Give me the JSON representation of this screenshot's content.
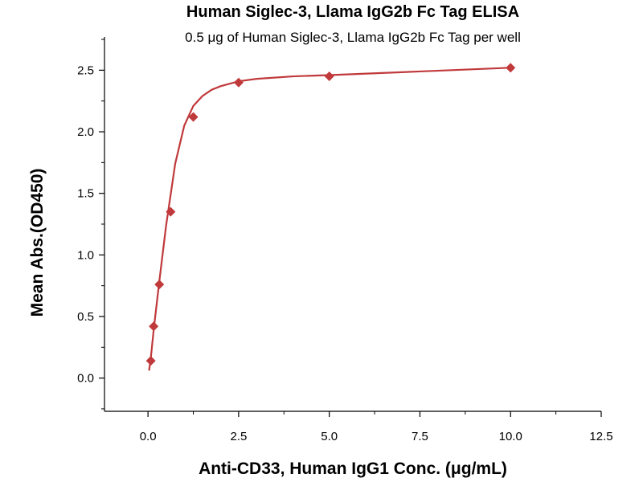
{
  "chart_data": {
    "type": "scatter",
    "title": "Human Siglec-3, Llama IgG2b Fc Tag ELISA",
    "subtitle": "0.5 μg of Human Siglec-3, Llama IgG2b Fc Tag per well",
    "xlabel": "Anti-CD33, Human IgG1 Conc. (μg/mL)",
    "ylabel": "Mean Abs.(OD450)",
    "xlim": [
      -1.2,
      12.5
    ],
    "ylim": [
      -0.27,
      2.77
    ],
    "xticks": [
      0.0,
      2.5,
      5.0,
      7.5,
      10.0,
      12.5
    ],
    "xtick_labels": [
      "0.0",
      "2.5",
      "5.0",
      "7.5",
      "10.0",
      "12.5"
    ],
    "yticks": [
      0.0,
      0.5,
      1.0,
      1.5,
      2.0,
      2.5
    ],
    "ytick_labels": [
      "0.0",
      "0.5",
      "1.0",
      "1.5",
      "2.0",
      "2.5"
    ],
    "grid": false,
    "color": "#c0393b",
    "marker": "diamond",
    "series": [
      {
        "x": [
          0.078,
          0.156,
          0.3125,
          0.625,
          1.25,
          2.5,
          5.0,
          10.0
        ],
        "y": [
          0.14,
          0.42,
          0.76,
          1.35,
          2.12,
          2.4,
          2.45,
          2.52
        ],
        "fit_curve": {
          "x": [
            0.03,
            0.08,
            0.16,
            0.31,
            0.5,
            0.75,
            1.0,
            1.25,
            1.5,
            1.75,
            2.0,
            2.5,
            3.0,
            4.0,
            5.0,
            7.5,
            10.0
          ],
          "y": [
            0.06,
            0.17,
            0.4,
            0.78,
            1.24,
            1.74,
            2.05,
            2.21,
            2.29,
            2.34,
            2.37,
            2.41,
            2.43,
            2.45,
            2.46,
            2.49,
            2.52
          ]
        }
      }
    ]
  }
}
